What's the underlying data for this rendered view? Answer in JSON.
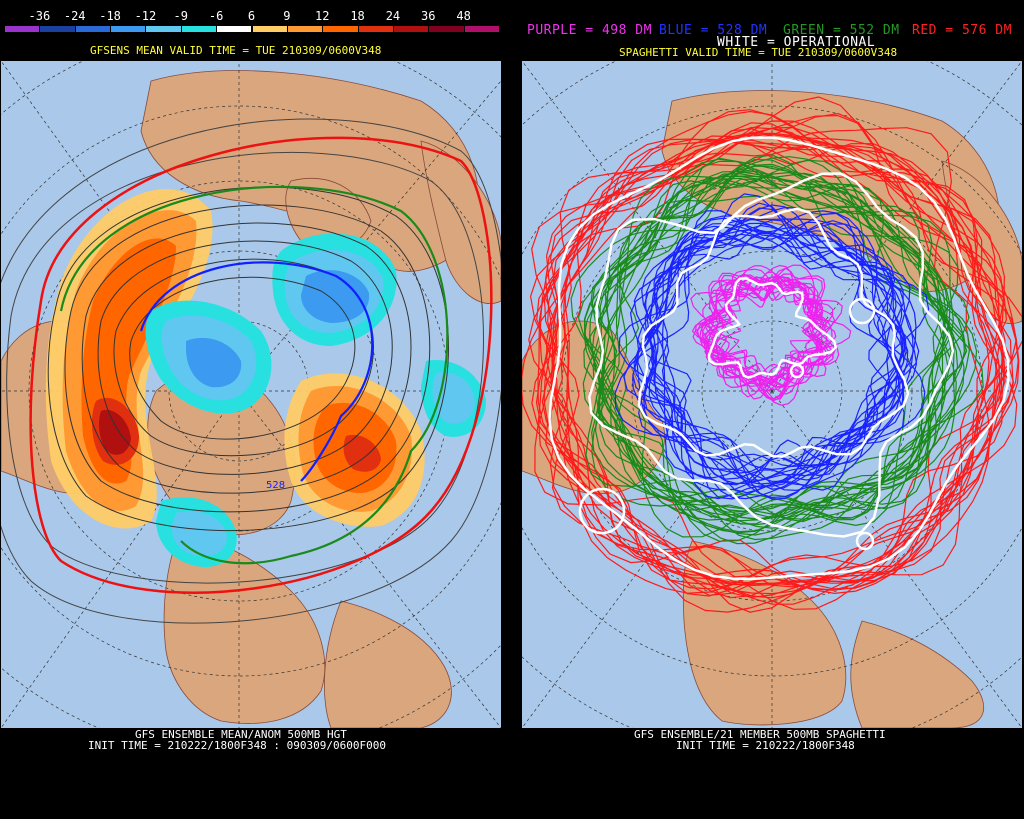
{
  "left": {
    "colorbar": {
      "labels": [
        "-36",
        "-24",
        "-18",
        "-12",
        "-9",
        "-6",
        "6",
        "9",
        "12",
        "18",
        "24",
        "36",
        "48"
      ],
      "colors": [
        "#9933cc",
        "#1a40a0",
        "#2a6ad8",
        "#3c9af0",
        "#60c8f0",
        "#28e0e0",
        "#ffffff",
        "#ffcc66",
        "#ff9933",
        "#ff6600",
        "#e03010",
        "#b01010",
        "#800020",
        "#b0106a"
      ]
    },
    "valid_time": "GFSENS MEAN VALID TIME = TUE 210309/0600V348",
    "contour_label": "528",
    "footer_line1": "GFS ENSEMBLE MEAN/ANOM 500MB HGT",
    "footer_line2": "INIT TIME = 210222/1800F348 : 090309/0600F000"
  },
  "right": {
    "legend": {
      "purple": "PURPLE = 498 DM",
      "blue": "BLUE = 528 DM",
      "green": "GREEN = 552 DM",
      "red": "RED = 576 DM",
      "white": "WHITE = OPERATIONAL"
    },
    "legend_colors": {
      "purple": "#ee33ee",
      "blue": "#2233ff",
      "green": "#229922",
      "red": "#ff2222",
      "white": "#ffffff"
    },
    "valid_time": "SPAGHETTI VALID TIME = TUE 210309/0600V348",
    "footer_line1": "GFS ENSEMBLE/21 MEMBER 500MB SPAGHETTI",
    "footer_line2": "INIT TIME = 210222/1800F348"
  },
  "colors": {
    "ocean": "#a9c8ea",
    "land": "#d9a67e",
    "grid": "#444444"
  }
}
